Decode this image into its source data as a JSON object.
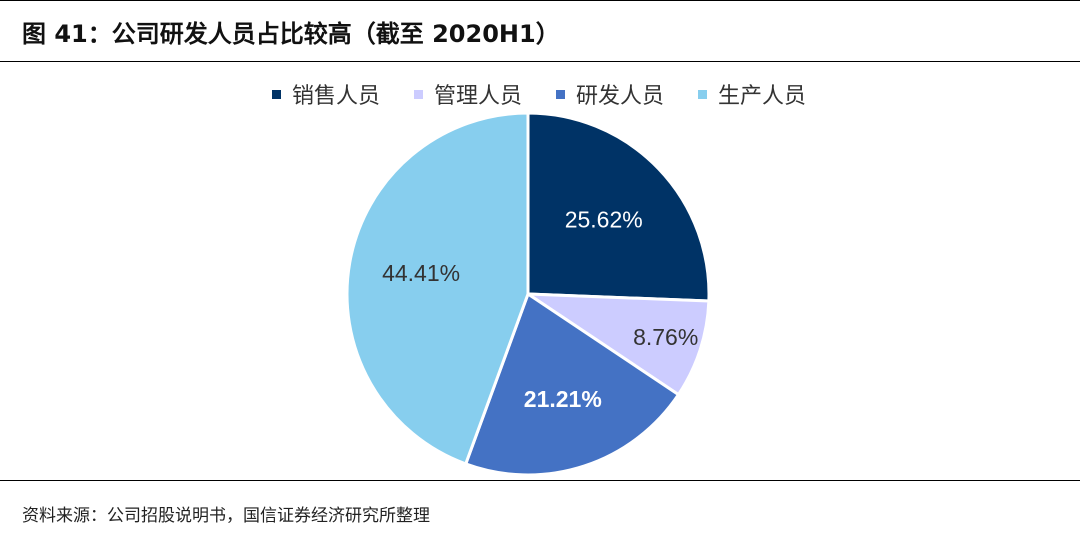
{
  "header": {
    "title": "图 41：公司研发人员占比较高（截至 2020H1）"
  },
  "footer": {
    "source": "资料来源：公司招股说明书，国信证券经济研究所整理"
  },
  "chart_data": {
    "type": "pie",
    "title": "图 41：公司研发人员占比较高（截至 2020H1）",
    "categories": [
      "销售人员",
      "管理人员",
      "研发人员",
      "生产人员"
    ],
    "values": [
      25.62,
      8.76,
      21.21,
      44.41
    ],
    "labels": [
      "25.62%",
      "8.76%",
      "21.21%",
      "44.41%"
    ],
    "colors": [
      "#003366",
      "#ccccff",
      "#4472c4",
      "#87ceee"
    ],
    "label_colors": [
      "#ffffff",
      "#333333",
      "#ffffff",
      "#333333"
    ],
    "label_bold": [
      false,
      false,
      true,
      false
    ],
    "legend_position": "top",
    "start_angle": "12 o'clock, clockwise"
  }
}
